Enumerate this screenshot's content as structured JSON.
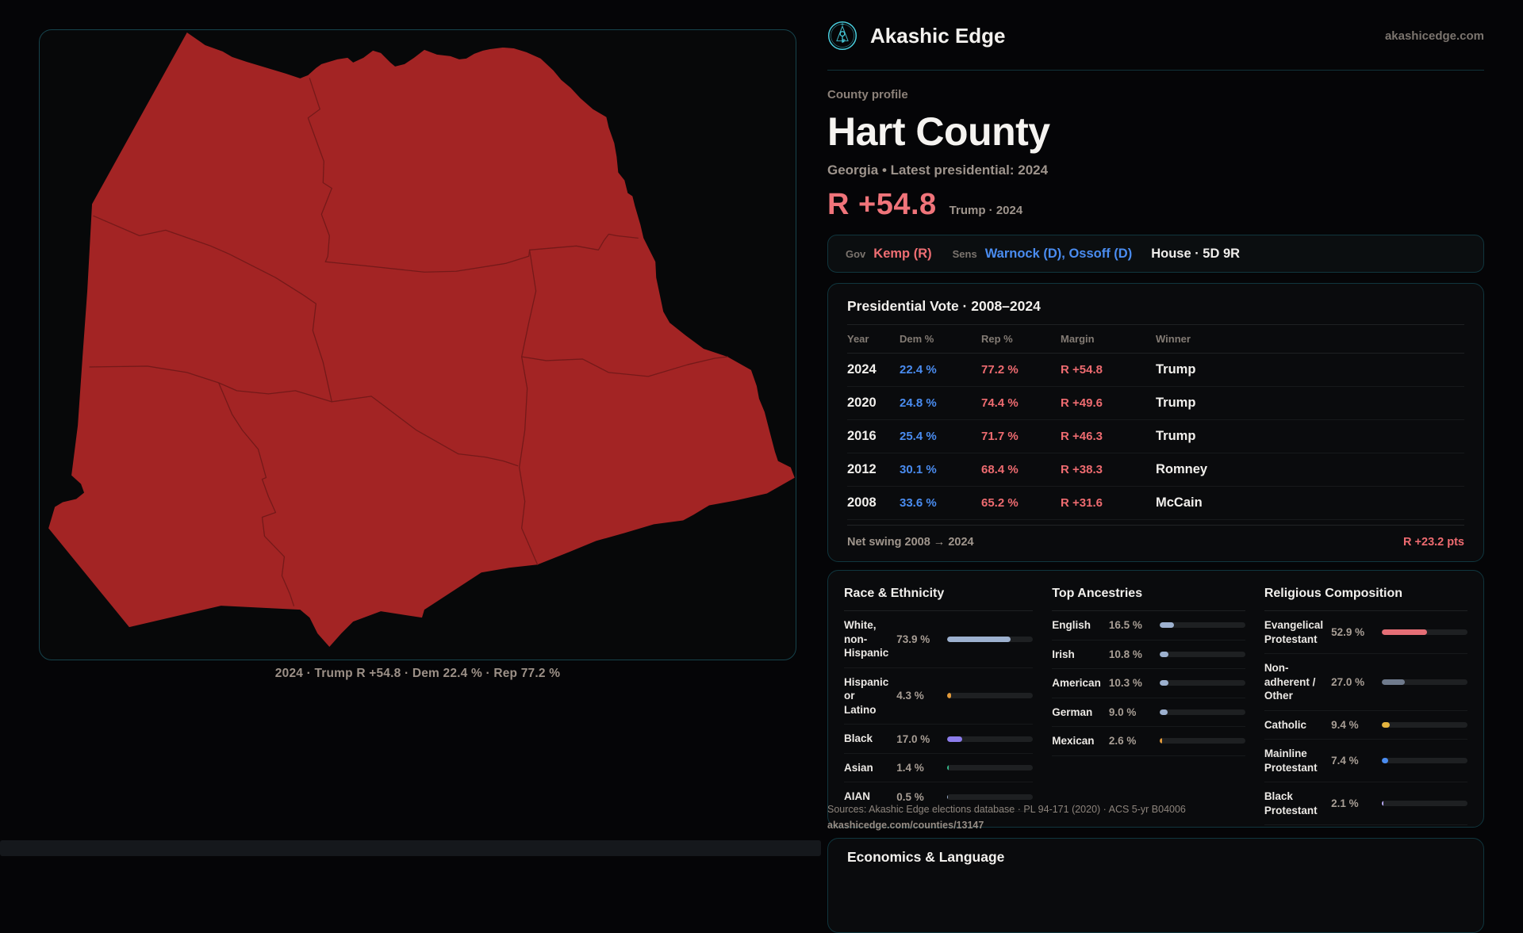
{
  "brand": {
    "name": "Akashic Edge",
    "domain": "akashicedge.com"
  },
  "profile": {
    "eyebrow": "County profile",
    "title": "Hart County",
    "subtitle": "Georgia • Latest presidential: 2024",
    "margin_value": "R +54.8",
    "margin_context": "Trump · 2024"
  },
  "officials": {
    "gov_label": "Gov",
    "gov_value": "Kemp (R)",
    "sens_label": "Sens",
    "sens_value": "Warnock (D), Ossoff (D)",
    "house_value": "House · 5D 9R"
  },
  "presidential": {
    "title": "Presidential Vote · 2008–2024",
    "columns": {
      "year": "Year",
      "dem": "Dem %",
      "rep": "Rep %",
      "margin": "Margin",
      "winner": "Winner"
    },
    "rows": [
      {
        "year": "2024",
        "dem": "22.4 %",
        "rep": "77.2 %",
        "margin": "R +54.8",
        "winner": "Trump"
      },
      {
        "year": "2020",
        "dem": "24.8 %",
        "rep": "74.4 %",
        "margin": "R +49.6",
        "winner": "Trump"
      },
      {
        "year": "2016",
        "dem": "25.4 %",
        "rep": "71.7 %",
        "margin": "R +46.3",
        "winner": "Trump"
      },
      {
        "year": "2012",
        "dem": "30.1 %",
        "rep": "68.4 %",
        "margin": "R +38.3",
        "winner": "Romney"
      },
      {
        "year": "2008",
        "dem": "33.6 %",
        "rep": "65.2 %",
        "margin": "R +31.6",
        "winner": "McCain"
      }
    ],
    "net_swing_label": "Net swing 2008 → 2024",
    "net_swing_value": "R +23.2 pts"
  },
  "demographics": {
    "race": {
      "title": "Race & Ethnicity",
      "rows": [
        {
          "label": "White, non-Hispanic",
          "value": "73.9 %",
          "pct": 73.9,
          "color": "#9db1cf"
        },
        {
          "label": "Hispanic or Latino",
          "value": "4.3 %",
          "pct": 4.3,
          "color": "#e29a3a"
        },
        {
          "label": "Black",
          "value": "17.0 %",
          "pct": 17.0,
          "color": "#8c7ceb"
        },
        {
          "label": "Asian",
          "value": "1.4 %",
          "pct": 1.4,
          "color": "#34b98a"
        },
        {
          "label": "AIAN",
          "value": "0.5 %",
          "pct": 0.5,
          "color": "#9db1cf"
        }
      ]
    },
    "ancestries": {
      "title": "Top Ancestries",
      "rows": [
        {
          "label": "English",
          "value": "16.5 %",
          "pct": 16.5,
          "color": "#9db1cf"
        },
        {
          "label": "Irish",
          "value": "10.8 %",
          "pct": 10.8,
          "color": "#9db1cf"
        },
        {
          "label": "American",
          "value": "10.3 %",
          "pct": 10.3,
          "color": "#9db1cf"
        },
        {
          "label": "German",
          "value": "9.0 %",
          "pct": 9.0,
          "color": "#9db1cf"
        },
        {
          "label": "Mexican",
          "value": "2.6 %",
          "pct": 2.6,
          "color": "#e29a3a"
        }
      ]
    },
    "religion": {
      "title": "Religious Composition",
      "rows": [
        {
          "label": "Evangelical Protestant",
          "value": "52.9 %",
          "pct": 52.9,
          "color": "#e56e76"
        },
        {
          "label": "Non-adherent / Other",
          "value": "27.0 %",
          "pct": 27.0,
          "color": "#6f7a8c"
        },
        {
          "label": "Catholic",
          "value": "9.4 %",
          "pct": 9.4,
          "color": "#e3b33e"
        },
        {
          "label": "Mainline Protestant",
          "value": "7.4 %",
          "pct": 7.4,
          "color": "#4a8cf0"
        },
        {
          "label": "Black Protestant",
          "value": "2.1 %",
          "pct": 2.1,
          "color": "#b9aaf2"
        }
      ]
    }
  },
  "sources": {
    "line1": "Sources: Akashic Edge elections database · PL 94-171 (2020) · ACS 5-yr B04006",
    "line2": "akashicedge.com/counties/13147"
  },
  "economics": {
    "title": "Economics & Language"
  },
  "map": {
    "caption": "2024 · Trump R +54.8 · Dem 22.4 % · Rep 77.2 %",
    "fill_color": "#a32424",
    "boundary_color": "#701818"
  },
  "colors": {
    "accent_teal": "#49cede",
    "dem_blue": "#4a8cf0",
    "rep_red": "#ee6e73"
  }
}
